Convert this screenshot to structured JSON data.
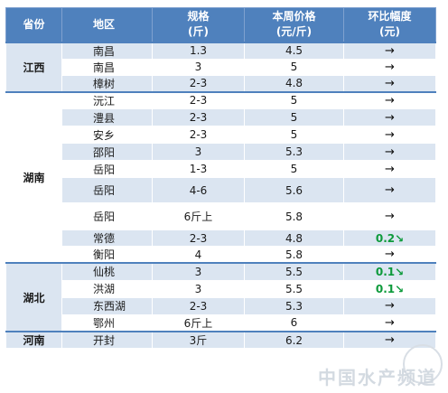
{
  "headers": {
    "province": "省份",
    "area": "地区",
    "spec_line1": "规格",
    "spec_line2": "(斤)",
    "price_line1": "本周价格",
    "price_line2": "(元/斤)",
    "change_line1": "环比幅度",
    "change_line2": "(元)"
  },
  "rows": [
    {
      "province": "江西",
      "area": "南昌",
      "spec": "1.3",
      "price": "4.5",
      "change": "→"
    },
    {
      "area": "南昌",
      "spec": "3",
      "price": "5",
      "change": "→"
    },
    {
      "area": "樟树",
      "spec": "2-3",
      "price": "4.8",
      "change": "→"
    },
    {
      "province": "湖南",
      "area": "沅江",
      "spec": "2-3",
      "price": "5",
      "change": "→"
    },
    {
      "area": "澧县",
      "spec": "2-3",
      "price": "5",
      "change": "→"
    },
    {
      "area": "安乡",
      "spec": "2-3",
      "price": "5",
      "change": "→"
    },
    {
      "area": "邵阳",
      "spec": "3",
      "price": "5.3",
      "change": "→"
    },
    {
      "area": "岳阳",
      "spec": "1-3",
      "price": "5",
      "change": "→"
    },
    {
      "area": "岳阳",
      "spec": "4-6",
      "price": "5.6",
      "change": "→"
    },
    {
      "area": "岳阳",
      "spec": "6斤上",
      "price": "5.8",
      "change": "→"
    },
    {
      "area": "常德",
      "spec": "2-3",
      "price": "4.8",
      "change": "0.2↘"
    },
    {
      "area": "衡阳",
      "spec": "4",
      "price": "5.8",
      "change": "→"
    },
    {
      "province": "湖北",
      "area": "仙桃",
      "spec": "3",
      "price": "5.5",
      "change": "0.1↘"
    },
    {
      "area": "洪湖",
      "spec": "3",
      "price": "5.5",
      "change": "0.1↘"
    },
    {
      "area": "东西湖",
      "spec": "2-3",
      "price": "5.3",
      "change": "→"
    },
    {
      "area": "鄂州",
      "spec": "6斤上",
      "price": "6",
      "change": "→"
    },
    {
      "province": "河南",
      "area": "开封",
      "spec": "3斤",
      "price": "6.2",
      "change": "→"
    }
  ],
  "watermark": "中国水产频道",
  "colors": {
    "header": "#4f81bd",
    "shade": "#dbe5f1",
    "down": "#0d9a3b"
  }
}
